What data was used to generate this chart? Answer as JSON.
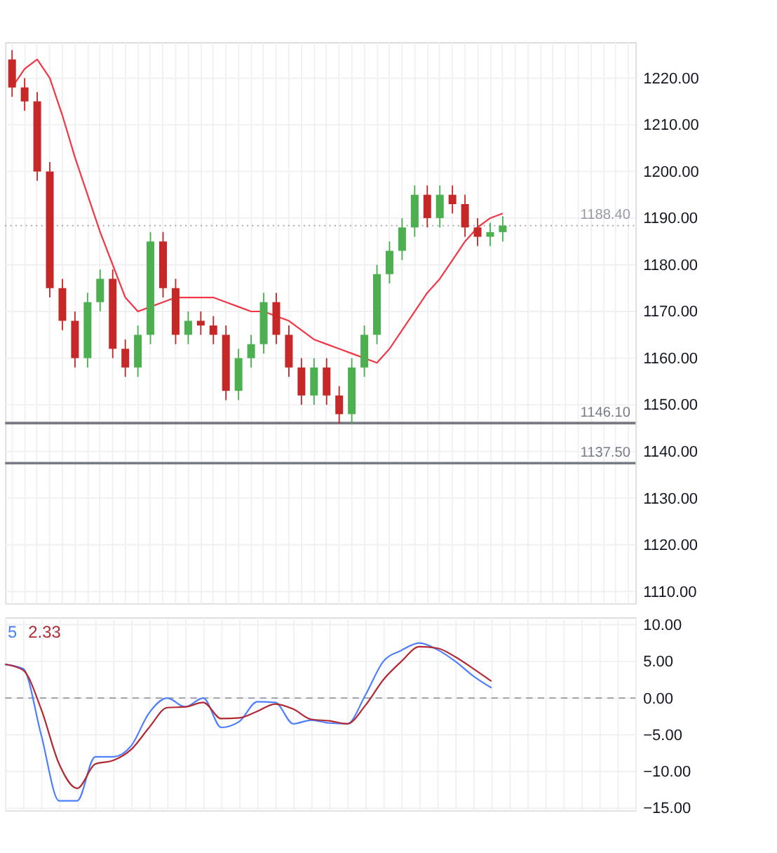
{
  "chart_data": [
    {
      "type": "candlestick",
      "categories": [
        null,
        null,
        null,
        null,
        null,
        null,
        null,
        null,
        null,
        null,
        null,
        null,
        null,
        null,
        null,
        null,
        null,
        null,
        null,
        null,
        null,
        null,
        null,
        null,
        null,
        null,
        null,
        null,
        null,
        null,
        null,
        null,
        null,
        null,
        null,
        null,
        null,
        null,
        null,
        null,
        null,
        null,
        null,
        null,
        null,
        null,
        null,
        null,
        null,
        null
      ],
      "ohlc": [
        [
          1224,
          1226,
          1216,
          1218
        ],
        [
          1218,
          1220,
          1213,
          1215
        ],
        [
          1215,
          1217,
          1198,
          1200
        ],
        [
          1200,
          1202,
          1173,
          1175
        ],
        [
          1175,
          1177,
          1166,
          1168
        ],
        [
          1168,
          1170,
          1158,
          1160
        ],
        [
          1160,
          1174,
          1158,
          1172
        ],
        [
          1172,
          1179,
          1170,
          1177
        ],
        [
          1177,
          1179,
          1160,
          1162
        ],
        [
          1162,
          1164,
          1156,
          1158
        ],
        [
          1158,
          1167,
          1156,
          1165
        ],
        [
          1165,
          1187,
          1163,
          1185
        ],
        [
          1185,
          1187,
          1173,
          1175
        ],
        [
          1175,
          1177,
          1163,
          1165
        ],
        [
          1165,
          1170,
          1163,
          1168
        ],
        [
          1168,
          1170,
          1165,
          1167
        ],
        [
          1167,
          1169,
          1163,
          1165
        ],
        [
          1165,
          1167,
          1151,
          1153
        ],
        [
          1153,
          1162,
          1151,
          1160
        ],
        [
          1160,
          1165,
          1158,
          1163
        ],
        [
          1163,
          1174,
          1161,
          1172
        ],
        [
          1172,
          1174,
          1163,
          1165
        ],
        [
          1165,
          1167,
          1156,
          1158
        ],
        [
          1158,
          1160,
          1150,
          1152
        ],
        [
          1152,
          1160,
          1150,
          1158
        ],
        [
          1158,
          1160,
          1150,
          1152
        ],
        [
          1152,
          1154,
          1146,
          1148
        ],
        [
          1148,
          1160,
          1146,
          1158
        ],
        [
          1158,
          1167,
          1156,
          1165
        ],
        [
          1165,
          1180,
          1163,
          1178
        ],
        [
          1178,
          1185,
          1176,
          1183
        ],
        [
          1183,
          1190,
          1181,
          1188
        ],
        [
          1188,
          1197,
          1186,
          1195
        ],
        [
          1195,
          1197,
          1188,
          1190
        ],
        [
          1190,
          1197,
          1188,
          1195
        ],
        [
          1195,
          1197,
          1191,
          1193
        ],
        [
          1193,
          1195,
          1186,
          1188
        ],
        [
          1188,
          1190,
          1184,
          1186
        ],
        [
          1186,
          1189,
          1184,
          1187
        ],
        [
          1187,
          1190.4,
          1185,
          1188.4
        ],
        null,
        null,
        null,
        null,
        null,
        null,
        null,
        null,
        null,
        null
      ],
      "colors": [
        "#c62828",
        "#c62828",
        "#c62828",
        "#c62828",
        "#c62828",
        "#c62828",
        "#4caf50",
        "#4caf50",
        "#c62828",
        "#c62828",
        "#4caf50",
        "#4caf50",
        "#c62828",
        "#c62828",
        "#4caf50",
        "#c62828",
        "#c62828",
        "#c62828",
        "#4caf50",
        "#4caf50",
        "#4caf50",
        "#c62828",
        "#c62828",
        "#c62828",
        "#4caf50",
        "#c62828",
        "#c62828",
        "#4caf50",
        "#4caf50",
        "#4caf50",
        "#4caf50",
        "#4caf50",
        "#4caf50",
        "#c62828",
        "#4caf50",
        "#c62828",
        "#c62828",
        "#c62828",
        "#4caf50",
        "#4caf50",
        null,
        null,
        null,
        null,
        null,
        null,
        null,
        null,
        null,
        null
      ],
      "series": [
        {
          "type": "line",
          "color": "#f23645",
          "values": [
            1218,
            1222,
            1224,
            1220,
            1212,
            1203,
            1195,
            1187,
            1180,
            1173,
            1170,
            1171,
            1172,
            1173,
            1173,
            1173,
            1173,
            1172,
            1171,
            1170,
            1170,
            1169,
            1168,
            1166,
            1164,
            1163,
            1162,
            1161,
            1160,
            1159,
            1162,
            1166,
            1170,
            1174,
            1177,
            1181,
            1185,
            1188,
            1190,
            1191,
            null,
            null,
            null,
            null,
            null,
            null,
            null,
            null,
            null,
            null
          ]
        }
      ],
      "ylim": [
        1107.5,
        1227.7
      ],
      "yticks": [
        {
          "value": 1110,
          "label": "1110.00"
        },
        {
          "value": 1120,
          "label": "1120.00"
        },
        {
          "value": 1130,
          "label": "1130.00"
        },
        {
          "value": 1140,
          "label": "1140.00"
        },
        {
          "value": 1150,
          "label": "1150.00"
        },
        {
          "value": 1160,
          "label": "1160.00"
        },
        {
          "value": 1170,
          "label": "1170.00"
        },
        {
          "value": 1180,
          "label": "1180.00"
        },
        {
          "value": 1190,
          "label": "1190.00"
        },
        {
          "value": 1200,
          "label": "1200.00"
        },
        {
          "value": 1210,
          "label": "1210.00"
        },
        {
          "value": 1220,
          "label": "1220.00"
        }
      ],
      "ref_lines": [
        {
          "axis": "y",
          "value": 1146.1,
          "label": "1146.10",
          "color": "#787b86",
          "line_style": "solid"
        },
        {
          "axis": "y",
          "value": 1137.5,
          "label": "1137.50",
          "color": "#787b86",
          "line_style": "solid"
        },
        {
          "axis": "y",
          "value": 1188.4,
          "label": "1188.40",
          "color": "#9598a1",
          "line_style": "dotted"
        }
      ],
      "grid": true,
      "tick_labels": "y"
    },
    {
      "type": "line",
      "annotations": [
        "5",
        "2.33"
      ],
      "series": [
        {
          "color": "#4e7fff",
          "values": [
            4.6,
            4.0,
            -5,
            -14,
            -14,
            -8,
            -8,
            -6.5,
            -2,
            0,
            -1.2,
            0,
            -4,
            -3.2,
            -0.5,
            -0.6,
            -3.5,
            -3,
            -3.4,
            -3.5,
            0.4,
            5,
            6.5,
            7.5,
            6.6,
            5,
            3,
            1.4,
            null,
            null,
            null,
            null,
            null,
            null,
            null,
            null
          ]
        },
        {
          "color": "#b22833",
          "values": [
            4.6,
            3.8,
            -1.5,
            -9,
            -12.3,
            -9,
            -8.5,
            -7,
            -4,
            -1.3,
            -1.2,
            -0.6,
            -2.8,
            -2.7,
            -1.8,
            -0.8,
            -1.5,
            -2.9,
            -3.1,
            -3.5,
            -1,
            2.5,
            5,
            7,
            6.8,
            5.6,
            4,
            2.3,
            null,
            null,
            null,
            null,
            null,
            null,
            null,
            null
          ]
        }
      ],
      "categories": [
        null,
        null,
        null,
        null,
        null,
        null,
        null,
        null,
        null,
        null,
        null,
        null,
        null,
        null,
        null,
        null,
        null,
        null,
        null,
        null,
        null,
        null,
        null,
        null,
        null,
        null,
        null,
        null,
        null,
        null,
        null,
        null,
        null,
        null,
        null,
        null
      ],
      "ylim": [
        -15.3,
        11
      ],
      "yticks": [
        {
          "value": 10,
          "label": "10.00"
        },
        {
          "value": 5,
          "label": "5.00"
        },
        {
          "value": 0,
          "label": "0.00"
        },
        {
          "value": -5,
          "label": "−5.00"
        },
        {
          "value": -10,
          "label": "−10.00"
        },
        {
          "value": -15,
          "label": "−15.00"
        }
      ],
      "ref_lines": [
        {
          "axis": "y",
          "value": 0,
          "color": "#9598a1",
          "line_style": "dashed"
        }
      ],
      "grid": true,
      "tick_labels": "y"
    }
  ]
}
